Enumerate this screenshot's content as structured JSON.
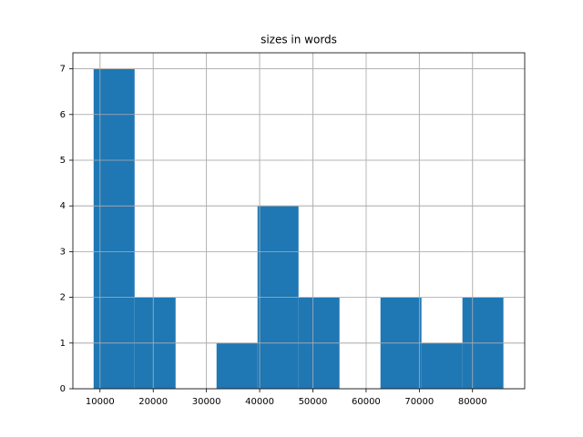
{
  "chart_data": {
    "type": "histogram",
    "title": "sizes in words",
    "bins": [
      8800,
      16500,
      24200,
      31900,
      39600,
      47300,
      55000,
      62700,
      70400,
      78100,
      85800
    ],
    "values": [
      7,
      2,
      0,
      1,
      4,
      2,
      0,
      2,
      1,
      2
    ],
    "color": "#1f77b4",
    "xlim": [
      4900,
      89800
    ],
    "xticks": [
      10000,
      20000,
      30000,
      40000,
      50000,
      60000,
      70000,
      80000
    ],
    "ylim": [
      0,
      7.35
    ],
    "yticks": [
      0,
      1,
      2,
      3,
      4,
      5,
      6,
      7
    ],
    "grid": true
  }
}
